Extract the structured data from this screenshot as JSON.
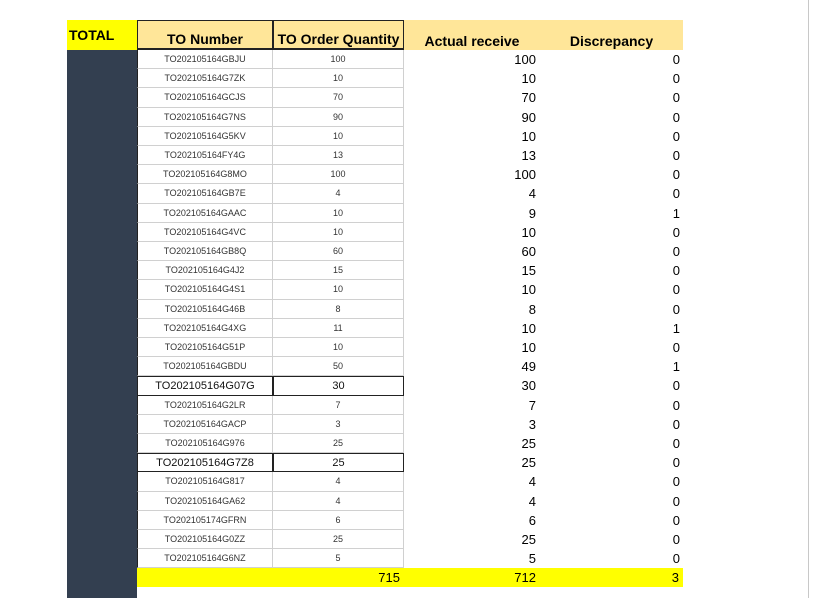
{
  "header": {
    "total_label": "TOTAL",
    "columns": [
      "TO Number",
      "TO Order Quantity",
      "Actual receive",
      "Discrepancy"
    ]
  },
  "rows": [
    [
      "TO202105164GBJU",
      100,
      100,
      0
    ],
    [
      "TO202105164G7ZK",
      10,
      10,
      0
    ],
    [
      "TO202105164GCJS",
      70,
      70,
      0
    ],
    [
      "TO202105164G7NS",
      90,
      90,
      0
    ],
    [
      "TO202105164G5KV",
      10,
      10,
      0
    ],
    [
      "TO202105164FY4G",
      13,
      13,
      0
    ],
    [
      "TO202105164G8MO",
      100,
      100,
      0
    ],
    [
      "TO202105164GB7E",
      4,
      4,
      0
    ],
    [
      "TO202105164GAAC",
      10,
      9,
      1
    ],
    [
      "TO202105164G4VC",
      10,
      10,
      0
    ],
    [
      "TO202105164GB8Q",
      60,
      60,
      0
    ],
    [
      "TO202105164G4J2",
      15,
      15,
      0
    ],
    [
      "TO202105164G4S1",
      10,
      10,
      0
    ],
    [
      "TO202105164G46B",
      8,
      8,
      0
    ],
    [
      "TO202105164G4XG",
      11,
      10,
      1
    ],
    [
      "TO202105164G51P",
      10,
      10,
      0
    ],
    [
      "TO202105164GBDU",
      50,
      49,
      1
    ],
    [
      "TO202105164G07G",
      30,
      30,
      0
    ],
    [
      "TO202105164G2LR",
      7,
      7,
      0
    ],
    [
      "TO202105164GACP",
      3,
      3,
      0
    ],
    [
      "TO202105164G976",
      25,
      25,
      0
    ],
    [
      "TO202105164G7Z8",
      25,
      25,
      0
    ],
    [
      "TO202105164G817",
      4,
      4,
      0
    ],
    [
      "TO202105164GA62",
      4,
      4,
      0
    ],
    [
      "TO202105174GFRN",
      6,
      6,
      0
    ],
    [
      "TO202105164G0ZZ",
      25,
      25,
      0
    ],
    [
      "TO202105164G6NZ",
      5,
      5,
      0
    ]
  ],
  "totals": [
    715,
    712,
    3
  ]
}
